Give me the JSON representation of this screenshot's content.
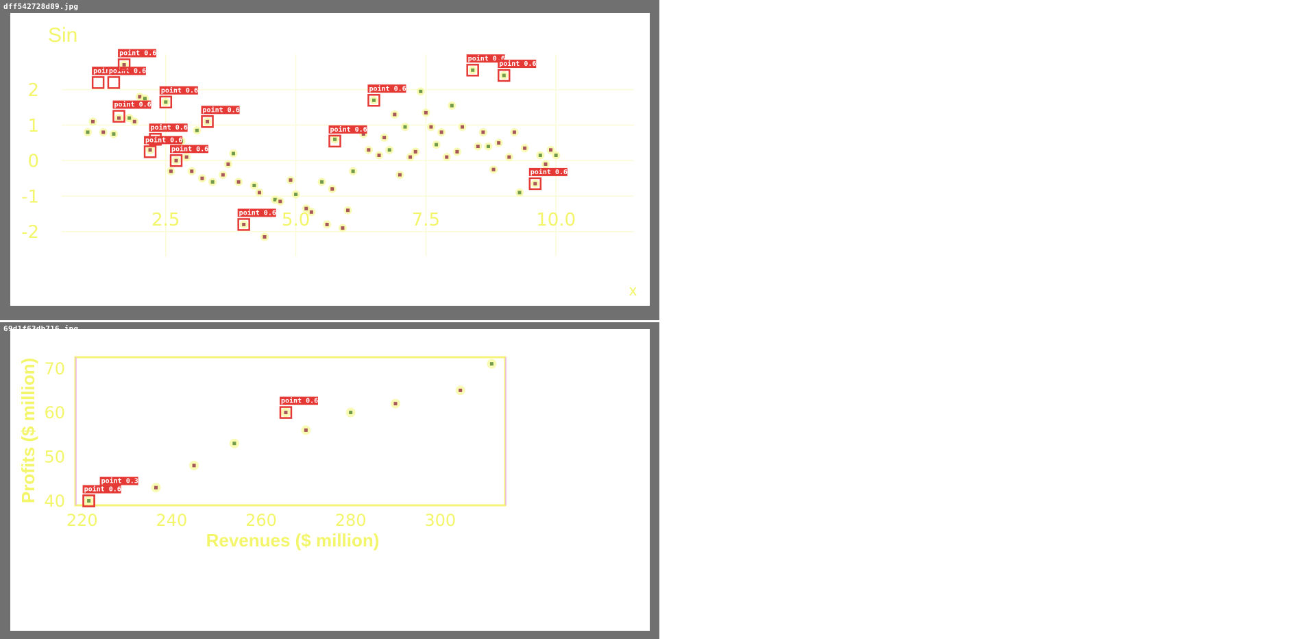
{
  "panels": [
    {
      "file_name": "dff542728d89.jpg",
      "chart_data": {
        "type": "scatter",
        "title": "Sin",
        "xlabel": "x",
        "ylabel": "",
        "xlim": [
          0.5,
          11.5
        ],
        "ylim": [
          -2.7,
          3.0
        ],
        "x_ticks": [
          2.5,
          5.0,
          7.5,
          10.0
        ],
        "x_tick_labels": [
          "2.5",
          "5.0",
          "7.5",
          "10.0"
        ],
        "y_ticks": [
          -2,
          -1,
          0,
          1,
          2
        ],
        "y_tick_labels": [
          "-2",
          "-1",
          "0",
          "1",
          "2"
        ],
        "grid": true,
        "points": [
          {
            "x": 1.0,
            "y": 0.8
          },
          {
            "x": 1.1,
            "y": 1.1
          },
          {
            "x": 1.3,
            "y": 0.8
          },
          {
            "x": 1.5,
            "y": 0.75
          },
          {
            "x": 1.6,
            "y": 1.2
          },
          {
            "x": 1.7,
            "y": 2.7
          },
          {
            "x": 1.8,
            "y": 1.2
          },
          {
            "x": 1.9,
            "y": 1.1
          },
          {
            "x": 2.0,
            "y": 1.8
          },
          {
            "x": 2.1,
            "y": 1.75
          },
          {
            "x": 2.2,
            "y": 0.3
          },
          {
            "x": 2.4,
            "y": 0.6
          },
          {
            "x": 2.5,
            "y": 1.65
          },
          {
            "x": 2.6,
            "y": -0.3
          },
          {
            "x": 2.7,
            "y": 0.0
          },
          {
            "x": 2.8,
            "y": 0.55
          },
          {
            "x": 2.9,
            "y": 0.1
          },
          {
            "x": 3.0,
            "y": -0.3
          },
          {
            "x": 3.1,
            "y": 0.85
          },
          {
            "x": 3.2,
            "y": -0.5
          },
          {
            "x": 3.3,
            "y": 1.1
          },
          {
            "x": 3.4,
            "y": -0.6
          },
          {
            "x": 3.6,
            "y": -0.4
          },
          {
            "x": 3.7,
            "y": -0.1
          },
          {
            "x": 3.8,
            "y": 0.2
          },
          {
            "x": 3.9,
            "y": -0.6
          },
          {
            "x": 4.0,
            "y": -1.8
          },
          {
            "x": 4.2,
            "y": -0.7
          },
          {
            "x": 4.3,
            "y": -0.9
          },
          {
            "x": 4.4,
            "y": -2.15
          },
          {
            "x": 4.6,
            "y": -1.1
          },
          {
            "x": 4.7,
            "y": -1.15
          },
          {
            "x": 4.9,
            "y": -0.55
          },
          {
            "x": 5.0,
            "y": -0.95
          },
          {
            "x": 5.2,
            "y": -1.35
          },
          {
            "x": 5.3,
            "y": -1.45
          },
          {
            "x": 5.5,
            "y": -0.6
          },
          {
            "x": 5.6,
            "y": -1.8
          },
          {
            "x": 5.7,
            "y": -0.8
          },
          {
            "x": 5.75,
            "y": 0.6
          },
          {
            "x": 5.9,
            "y": -1.9
          },
          {
            "x": 6.0,
            "y": -1.4
          },
          {
            "x": 6.1,
            "y": -0.3
          },
          {
            "x": 6.3,
            "y": 0.75
          },
          {
            "x": 6.4,
            "y": 0.3
          },
          {
            "x": 6.5,
            "y": 1.7
          },
          {
            "x": 6.6,
            "y": 0.15
          },
          {
            "x": 6.7,
            "y": 0.65
          },
          {
            "x": 6.8,
            "y": 0.3
          },
          {
            "x": 6.9,
            "y": 1.3
          },
          {
            "x": 7.0,
            "y": -0.4
          },
          {
            "x": 7.1,
            "y": 0.95
          },
          {
            "x": 7.2,
            "y": 0.1
          },
          {
            "x": 7.3,
            "y": 0.25
          },
          {
            "x": 7.4,
            "y": 1.95
          },
          {
            "x": 7.5,
            "y": 1.35
          },
          {
            "x": 7.6,
            "y": 0.95
          },
          {
            "x": 7.7,
            "y": 0.45
          },
          {
            "x": 7.8,
            "y": 0.8
          },
          {
            "x": 7.9,
            "y": 0.1
          },
          {
            "x": 8.0,
            "y": 1.55
          },
          {
            "x": 8.1,
            "y": 0.25
          },
          {
            "x": 8.2,
            "y": 0.95
          },
          {
            "x": 8.4,
            "y": 2.55
          },
          {
            "x": 8.5,
            "y": 0.4
          },
          {
            "x": 8.6,
            "y": 0.8
          },
          {
            "x": 8.7,
            "y": 0.4
          },
          {
            "x": 8.8,
            "y": -0.25
          },
          {
            "x": 8.9,
            "y": 0.5
          },
          {
            "x": 9.0,
            "y": 2.4
          },
          {
            "x": 9.1,
            "y": 0.1
          },
          {
            "x": 9.2,
            "y": 0.8
          },
          {
            "x": 9.3,
            "y": -0.9
          },
          {
            "x": 9.4,
            "y": 0.35
          },
          {
            "x": 9.6,
            "y": -0.65
          },
          {
            "x": 9.7,
            "y": 0.15
          },
          {
            "x": 9.8,
            "y": -0.1
          },
          {
            "x": 9.9,
            "y": 0.3
          },
          {
            "x": 10.0,
            "y": 0.15
          }
        ],
        "detections": [
          {
            "x": 1.2,
            "y": 2.2,
            "label": "point 0.6"
          },
          {
            "x": 1.5,
            "y": 2.2,
            "label": "point 0.6"
          },
          {
            "x": 1.7,
            "y": 2.7,
            "label": "point 0.6"
          },
          {
            "x": 1.6,
            "y": 1.25,
            "label": "point 0.6"
          },
          {
            "x": 2.5,
            "y": 1.65,
            "label": "point 0.6"
          },
          {
            "x": 3.3,
            "y": 1.1,
            "label": "point 0.6"
          },
          {
            "x": 2.3,
            "y": 0.6,
            "label": "point 0.6"
          },
          {
            "x": 2.2,
            "y": 0.25,
            "label": "point 0.6"
          },
          {
            "x": 2.7,
            "y": 0.0,
            "label": "point 0.6"
          },
          {
            "x": 4.0,
            "y": -1.8,
            "label": "point 0.6"
          },
          {
            "x": 5.75,
            "y": 0.55,
            "label": "point 0.6"
          },
          {
            "x": 6.5,
            "y": 1.7,
            "label": "point 0.6"
          },
          {
            "x": 8.4,
            "y": 2.55,
            "label": "point 0.6"
          },
          {
            "x": 9.0,
            "y": 2.4,
            "label": "point 0.6"
          },
          {
            "x": 9.6,
            "y": -0.65,
            "label": "point 0.6"
          }
        ]
      }
    },
    {
      "file_name": "69d1f63db716.jpg",
      "chart_data": {
        "type": "scatter",
        "title": "",
        "xlabel": "Revenues ($ million)",
        "ylabel": "Profits ($ million)",
        "xlim": [
          218.5,
          314.5
        ],
        "ylim": [
          39.0,
          72.5
        ],
        "x_ticks": [
          220,
          240,
          260,
          280,
          300
        ],
        "x_tick_labels": [
          "220",
          "240",
          "260",
          "280",
          "300"
        ],
        "y_ticks": [
          40,
          50,
          60,
          70
        ],
        "y_tick_labels": [
          "40",
          "50",
          "60",
          "70"
        ],
        "grid": false,
        "points": [
          {
            "x": 221.5,
            "y": 40.0
          },
          {
            "x": 236.5,
            "y": 43.0
          },
          {
            "x": 245.0,
            "y": 48.0
          },
          {
            "x": 254.0,
            "y": 53.0
          },
          {
            "x": 265.5,
            "y": 60.0
          },
          {
            "x": 270.0,
            "y": 56.0
          },
          {
            "x": 280.0,
            "y": 60.0
          },
          {
            "x": 290.0,
            "y": 62.0
          },
          {
            "x": 304.5,
            "y": 65.0
          },
          {
            "x": 311.5,
            "y": 71.0
          }
        ],
        "detections": [
          {
            "x": 265.5,
            "y": 60.0,
            "label": "point 0.6"
          },
          {
            "x": 221.5,
            "y": 40.0,
            "label": "point 0.3"
          },
          {
            "x": 221.5,
            "y": 40.0,
            "label": "point 0.6"
          }
        ]
      }
    }
  ],
  "colors": {
    "frame": "#707070",
    "canvas": "#ffffff",
    "text_yellow": "#f3f56a",
    "grid": "#fbfbd8",
    "marker_dark": "#9a3a4a",
    "marker_green": "#5a8a3a",
    "marker_glow": "#f7f9a0",
    "detection_red": "#e53935"
  }
}
